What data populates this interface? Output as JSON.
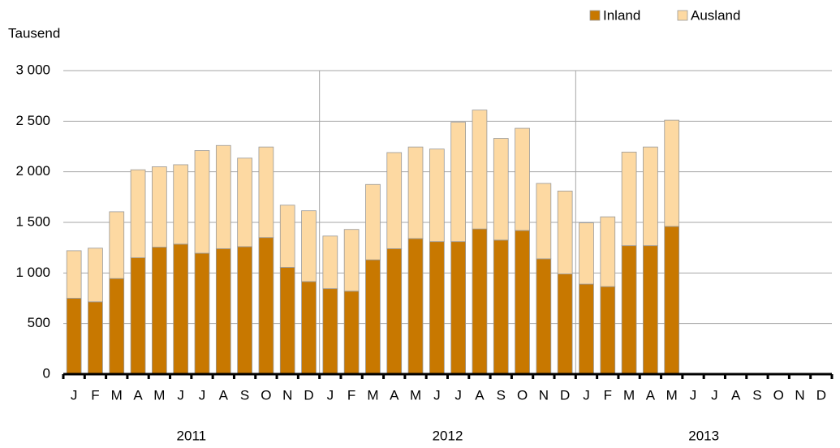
{
  "chart_data": {
    "type": "bar",
    "stacked": true,
    "y_label": "Tausend",
    "categories": [
      "J",
      "F",
      "M",
      "A",
      "M",
      "J",
      "J",
      "A",
      "S",
      "O",
      "N",
      "D",
      "J",
      "F",
      "M",
      "A",
      "M",
      "J",
      "J",
      "A",
      "S",
      "O",
      "N",
      "D",
      "J",
      "F",
      "M",
      "A",
      "M",
      "J",
      "J",
      "A",
      "S",
      "O",
      "N",
      "D"
    ],
    "years": [
      "2011",
      "2012",
      "2013"
    ],
    "series": [
      {
        "name": "Inland",
        "color": "#c87800",
        "values": [
          750,
          715,
          945,
          1150,
          1255,
          1285,
          1195,
          1240,
          1260,
          1350,
          1055,
          915,
          845,
          820,
          1130,
          1240,
          1340,
          1310,
          1310,
          1435,
          1325,
          1420,
          1140,
          990,
          890,
          865,
          1270,
          1270,
          1460,
          null,
          null,
          null,
          null,
          null,
          null,
          null
        ]
      },
      {
        "name": "Ausland",
        "color": "#fdd9a2",
        "values": [
          470,
          530,
          660,
          870,
          795,
          785,
          1015,
          1020,
          875,
          895,
          615,
          700,
          520,
          610,
          745,
          950,
          905,
          915,
          1180,
          1175,
          1005,
          1010,
          745,
          820,
          605,
          690,
          925,
          975,
          1050,
          null,
          null,
          null,
          null,
          null,
          null,
          null
        ]
      }
    ],
    "ylim": [
      0,
      3000
    ],
    "yticks": [
      0,
      500,
      {
        "value": 1000,
        "label": "1 000"
      },
      {
        "value": 1500,
        "label": "1 500"
      },
      {
        "value": 2000,
        "label": "2 000"
      },
      {
        "value": 2500,
        "label": "2 500"
      },
      {
        "value": 3000,
        "label": "3 000"
      }
    ],
    "grid": true,
    "legend": "top-right"
  }
}
